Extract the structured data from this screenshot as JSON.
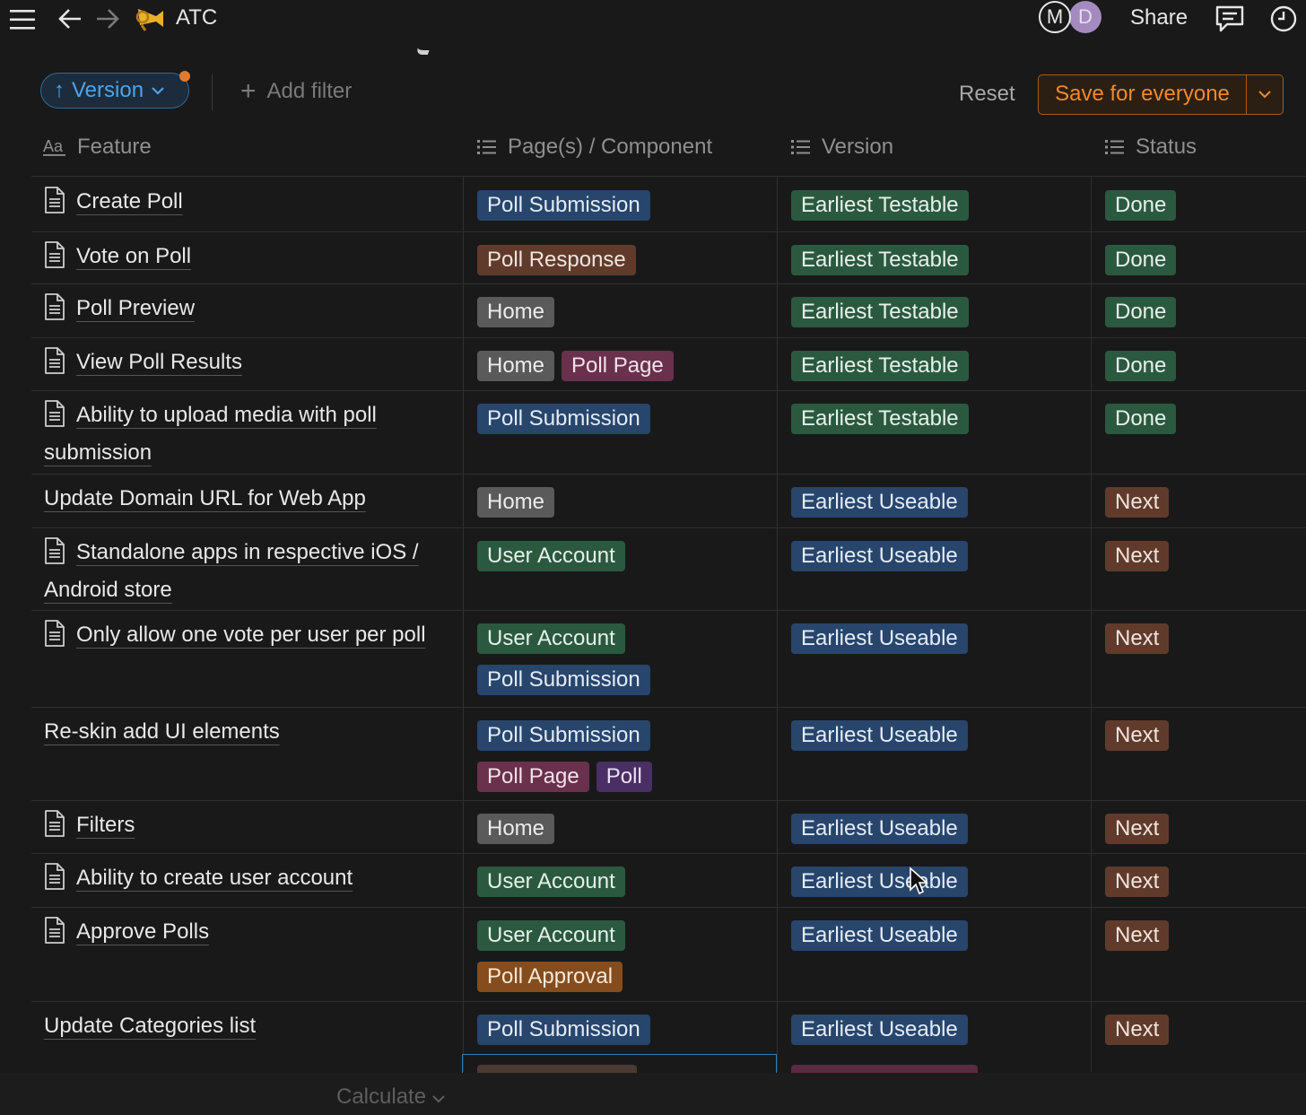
{
  "topbar": {
    "title": "ATC",
    "emoji": "📯",
    "avatars": [
      "M",
      "D"
    ],
    "share_label": "Share",
    "icons": [
      "menu-icon",
      "back-arrow-icon",
      "forward-arrow-icon",
      "comments-icon",
      "updates-clock-icon"
    ]
  },
  "filters": {
    "sort_pill": {
      "arrow": "↑",
      "label": "Version",
      "chevron": "⌄"
    },
    "add_filter_label": "Add filter",
    "reset_label": "Reset",
    "save_label": "Save for everyone"
  },
  "table": {
    "columns": [
      "Feature",
      "Page(s) / Component",
      "Version",
      "Status"
    ],
    "rows": [
      {
        "feature": "Create Poll",
        "doc": true,
        "pages": [
          {
            "label": "Poll Submission",
            "color": "blue"
          }
        ],
        "version": {
          "label": "Earliest Testable",
          "color": "green"
        },
        "status": {
          "label": "Done",
          "color": "green"
        }
      },
      {
        "feature": "Vote on Poll",
        "doc": true,
        "pages": [
          {
            "label": "Poll Response",
            "color": "brown"
          }
        ],
        "version": {
          "label": "Earliest Testable",
          "color": "green"
        },
        "status": {
          "label": "Done",
          "color": "green"
        }
      },
      {
        "feature": "Poll Preview",
        "doc": true,
        "pages": [
          {
            "label": "Home",
            "color": "gray"
          }
        ],
        "version": {
          "label": "Earliest Testable",
          "color": "green"
        },
        "status": {
          "label": "Done",
          "color": "green"
        }
      },
      {
        "feature": "View Poll Results",
        "doc": true,
        "pages": [
          {
            "label": "Home",
            "color": "gray"
          },
          {
            "label": "Poll Page",
            "color": "pink"
          }
        ],
        "version": {
          "label": "Earliest Testable",
          "color": "green"
        },
        "status": {
          "label": "Done",
          "color": "green"
        }
      },
      {
        "feature": "Ability to upload media with poll submission",
        "doc": true,
        "pages": [
          {
            "label": "Poll Submission",
            "color": "blue"
          }
        ],
        "version": {
          "label": "Earliest Testable",
          "color": "green"
        },
        "status": {
          "label": "Done",
          "color": "green"
        }
      },
      {
        "feature": "Update Domain URL for Web App",
        "doc": false,
        "pages": [
          {
            "label": "Home",
            "color": "gray"
          }
        ],
        "version": {
          "label": "Earliest Useable",
          "color": "blue"
        },
        "status": {
          "label": "Next",
          "color": "brown"
        }
      },
      {
        "feature": "Standalone apps in respective iOS / Android store",
        "doc": true,
        "pages": [
          {
            "label": "User Account",
            "color": "green"
          }
        ],
        "version": {
          "label": "Earliest Useable",
          "color": "blue"
        },
        "status": {
          "label": "Next",
          "color": "brown"
        }
      },
      {
        "feature": "Only allow one vote per user per poll",
        "doc": true,
        "pages": [
          {
            "label": "User Account",
            "color": "green"
          },
          {
            "label": "Poll Submission",
            "color": "blue"
          }
        ],
        "version": {
          "label": "Earliest Useable",
          "color": "blue"
        },
        "status": {
          "label": "Next",
          "color": "brown"
        }
      },
      {
        "feature": "Re-skin add UI elements",
        "doc": false,
        "pages": [
          {
            "label": "Poll Submission",
            "color": "blue"
          },
          {
            "label": "Poll Page",
            "color": "pink"
          },
          {
            "label": "Poll",
            "color": "purple"
          }
        ],
        "version": {
          "label": "Earliest Useable",
          "color": "blue"
        },
        "status": {
          "label": "Next",
          "color": "brown"
        }
      },
      {
        "feature": "Filters",
        "doc": true,
        "pages": [
          {
            "label": "Home",
            "color": "gray"
          }
        ],
        "version": {
          "label": "Earliest Useable",
          "color": "blue"
        },
        "status": {
          "label": "Next",
          "color": "brown"
        }
      },
      {
        "feature": "Ability to create user account",
        "doc": true,
        "pages": [
          {
            "label": "User Account",
            "color": "green"
          }
        ],
        "version": {
          "label": "Earliest Useable",
          "color": "blue"
        },
        "status": {
          "label": "Next",
          "color": "brown"
        }
      },
      {
        "feature": "Approve Polls",
        "doc": true,
        "pages": [
          {
            "label": "User Account",
            "color": "green"
          },
          {
            "label": "Poll Approval",
            "color": "orange"
          }
        ],
        "version": {
          "label": "Earliest Useable",
          "color": "blue"
        },
        "status": {
          "label": "Next",
          "color": "brown"
        }
      },
      {
        "feature": "Update Categories list",
        "doc": false,
        "pages": [
          {
            "label": "Poll Submission",
            "color": "blue"
          }
        ],
        "version": {
          "label": "Earliest Useable",
          "color": "blue"
        },
        "status": {
          "label": "Next",
          "color": "brown"
        }
      }
    ]
  },
  "footer": {
    "calculate_label": "Calculate"
  }
}
